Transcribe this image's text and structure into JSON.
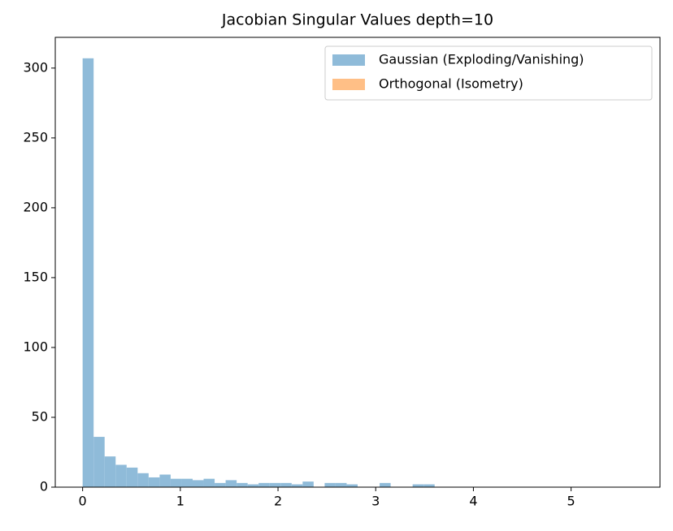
{
  "chart_data": {
    "type": "histogram",
    "title": "Jacobian Singular Values depth=10",
    "bins": [
      0,
      0.1126,
      0.2252,
      0.3378,
      0.4504,
      0.563,
      0.6756,
      0.7882,
      0.9008,
      1.0134,
      1.126,
      1.2386,
      1.3512,
      1.4638,
      1.5764,
      1.689,
      1.8016,
      1.9142,
      2.0268,
      2.1394,
      2.252,
      2.3646,
      2.4772,
      2.5898,
      2.7024,
      2.815,
      2.9276,
      3.0402,
      3.1528,
      3.2654,
      3.378,
      3.4906,
      3.6032,
      3.7158,
      3.8284,
      3.941,
      4.0536,
      4.1662,
      4.2788,
      4.3914,
      4.504,
      4.6166,
      4.7292,
      4.8418,
      4.9544,
      5.067,
      5.1796,
      5.2922,
      5.4048,
      5.5174,
      5.63
    ],
    "series": [
      {
        "name": "Gaussian (Exploding/Vanishing)",
        "color": "#8fbbd9",
        "values": [
          307,
          36,
          22,
          16,
          14,
          10,
          7,
          9,
          6,
          6,
          5,
          6,
          3,
          5,
          3,
          2,
          3,
          3,
          3,
          2,
          4,
          0,
          3,
          3,
          2,
          0,
          0,
          3,
          0,
          0,
          2,
          2,
          0,
          0,
          0,
          0,
          0,
          0,
          0,
          0,
          0,
          0,
          0,
          0,
          0,
          0,
          0,
          0,
          0,
          0
        ]
      },
      {
        "name": "Orthogonal (Isometry)",
        "color": "#ffbf86"
      }
    ],
    "xlim": [
      -0.28,
      5.91
    ],
    "xticks": [
      0,
      1,
      2,
      3,
      4,
      5
    ],
    "ylim": [
      0,
      322
    ],
    "yticks": [
      0,
      50,
      100,
      150,
      200,
      250,
      300
    ],
    "legend": "upper right"
  }
}
